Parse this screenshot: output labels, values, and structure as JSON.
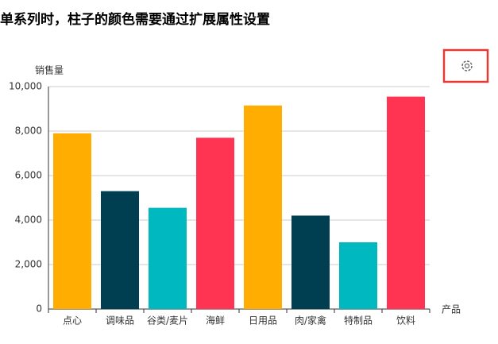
{
  "chart_data": {
    "type": "bar",
    "title": "单系列时，柱子的颜色需要通过扩展属性设置",
    "y_axis_label": "销售量",
    "x_axis_label": "产品",
    "categories": [
      "点心",
      "调味品",
      "谷类/麦片",
      "海鲜",
      "日用品",
      "肉/家禽",
      "特制品",
      "饮料"
    ],
    "values": [
      7900,
      5300,
      4550,
      7700,
      9150,
      4200,
      3000,
      9550
    ],
    "colors": [
      "#ffad00",
      "#003f51",
      "#00b8bf",
      "#ff3352",
      "#ffad00",
      "#003f51",
      "#00b8bf",
      "#ff3352"
    ],
    "ylim": [
      0,
      10000
    ],
    "yticks": [
      0,
      {
        "value": 2000,
        "label": "2,000"
      },
      {
        "value": 4000,
        "label": "4,000"
      },
      {
        "value": 6000,
        "label": "6,000"
      },
      {
        "value": 8000,
        "label": "8,000"
      },
      {
        "value": 10000,
        "label": "10,000"
      }
    ],
    "grid": true
  }
}
